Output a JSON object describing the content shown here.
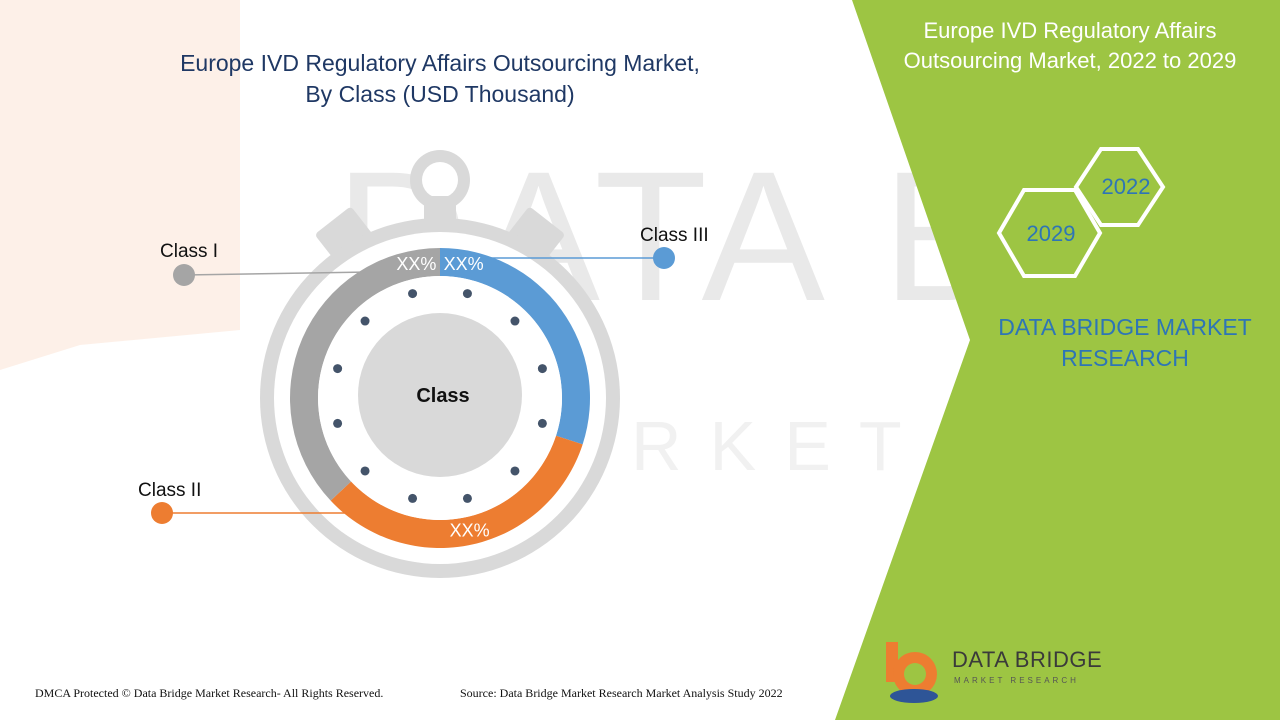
{
  "chart_title_line1": "Europe IVD Regulatory Affairs Outsourcing Market,",
  "chart_title_line2": "By Class (USD Thousand)",
  "panel_title_line1": "Europe IVD Regulatory Affairs",
  "panel_title_line2": "Outsourcing Market, 2022 to 2029",
  "years": {
    "start": "2022",
    "end": "2029"
  },
  "brand_line1": "DATA BRIDGE MARKET",
  "brand_line2": "RESEARCH",
  "footer": {
    "dmca": "DMCA Protected © Data Bridge Market Research- All Rights Reserved.",
    "source": "Source: Data Bridge Market Research Market Analysis Study 2022"
  },
  "logo": {
    "name": "DATA BRIDGE",
    "sub": "MARKET RESEARCH"
  },
  "watermark": {
    "line1": "DATA BRIDGE",
    "line2": "MARKET RESEARCH"
  },
  "colors": {
    "accent_green": "#9dc543",
    "class_i": "#a5a5a5",
    "class_ii": "#ed7d31",
    "class_iii": "#5b9bd5",
    "title_navy": "#1f3864",
    "brand_blue": "#2e75b6"
  },
  "chart_data": {
    "type": "pie",
    "variant": "stopwatch-donut",
    "center_label": "Class",
    "categories": [
      "Class I",
      "Class II",
      "Class III"
    ],
    "value_labels": [
      "XX%",
      "XX%",
      "XX%"
    ],
    "values": [
      37,
      33,
      30
    ],
    "colors": [
      "#a5a5a5",
      "#ed7d31",
      "#5b9bd5"
    ]
  }
}
